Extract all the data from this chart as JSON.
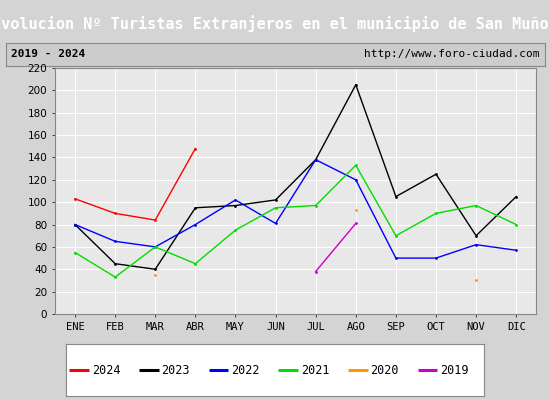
{
  "title": "Evolucion Nº Turistas Extranjeros en el municipio de San Muñoz",
  "subtitle_left": "2019 - 2024",
  "subtitle_right": "http://www.foro-ciudad.com",
  "months": [
    "ENE",
    "FEB",
    "MAR",
    "ABR",
    "MAY",
    "JUN",
    "JUL",
    "AGO",
    "SEP",
    "OCT",
    "NOV",
    "DIC"
  ],
  "ylim": [
    0,
    220
  ],
  "yticks": [
    0,
    20,
    40,
    60,
    80,
    100,
    120,
    140,
    160,
    180,
    200,
    220
  ],
  "series": {
    "2024": {
      "color": "#ff0000",
      "data": [
        103,
        90,
        84,
        148,
        null,
        null,
        null,
        null,
        null,
        null,
        null,
        null
      ]
    },
    "2023": {
      "color": "#000000",
      "data": [
        80,
        45,
        40,
        95,
        97,
        102,
        138,
        205,
        105,
        125,
        70,
        105
      ]
    },
    "2022": {
      "color": "#0000ff",
      "data": [
        80,
        65,
        60,
        80,
        102,
        81,
        138,
        120,
        50,
        50,
        62,
        57
      ]
    },
    "2021": {
      "color": "#00dd00",
      "data": [
        55,
        33,
        60,
        45,
        75,
        95,
        97,
        133,
        70,
        90,
        97,
        80
      ]
    },
    "2020": {
      "color": "#ff9900",
      "data": [
        null,
        null,
        35,
        null,
        null,
        null,
        null,
        93,
        null,
        null,
        30,
        null
      ]
    },
    "2019": {
      "color": "#cc00cc",
      "data": [
        null,
        null,
        null,
        null,
        null,
        null,
        38,
        81,
        null,
        null,
        null,
        null
      ]
    }
  },
  "legend_order": [
    "2024",
    "2023",
    "2022",
    "2021",
    "2020",
    "2019"
  ],
  "background_color": "#d4d4d4",
  "plot_background": "#e8e8e8",
  "title_bg": "#5588cc",
  "title_color": "#ffffff",
  "subtitle_bg": "#cccccc",
  "grid_color": "#ffffff",
  "border_color": "#888888",
  "title_fontsize": 11,
  "subtitle_fontsize": 8,
  "axis_fontsize": 7.5,
  "legend_fontsize": 8.5
}
